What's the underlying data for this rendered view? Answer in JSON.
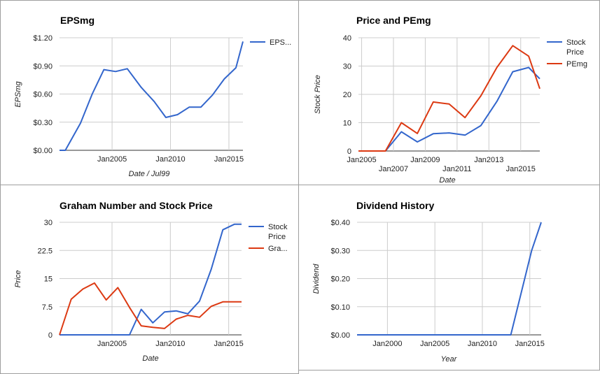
{
  "colors": {
    "blue": "#3366cc",
    "red": "#dc3912",
    "grid": "#cccccc",
    "axis": "#333333",
    "text": "#222222"
  },
  "chart_data": [
    {
      "id": "eps",
      "type": "line",
      "title": "EPSmg",
      "xlabel": "Date / Jul99",
      "ylabel": "EPSmg",
      "ylim": [
        0,
        1.2
      ],
      "yticks": [
        0,
        0.3,
        0.6,
        0.9,
        1.2
      ],
      "ytick_labels": [
        "$0.00",
        "$0.30",
        "$0.60",
        "$0.90",
        "$1.20"
      ],
      "xlim": [
        2000.5,
        2016.2
      ],
      "xticks": [
        2005,
        2010,
        2015
      ],
      "xtick_labels": [
        "Jan2005",
        "Jan2010",
        "Jan2015"
      ],
      "legend": "right",
      "series": [
        {
          "name": "EPS...",
          "color": "#3366cc",
          "x": [
            2000.5,
            2001,
            2002.3,
            2003.3,
            2004.3,
            2005.3,
            2006.3,
            2007.5,
            2008.6,
            2009.6,
            2010.6,
            2011.6,
            2012.6,
            2013.6,
            2014.6,
            2015.6,
            2016.2
          ],
          "y": [
            0,
            0,
            0.29,
            0.6,
            0.86,
            0.84,
            0.87,
            0.67,
            0.52,
            0.35,
            0.38,
            0.46,
            0.46,
            0.59,
            0.76,
            0.88,
            1.16
          ]
        }
      ]
    },
    {
      "id": "pe",
      "type": "line",
      "title": "Price and PEmg",
      "xlabel": "Date",
      "ylabel": "Stock Price",
      "ylim": [
        0,
        40
      ],
      "yticks": [
        0,
        10,
        20,
        30,
        40
      ],
      "ytick_labels": [
        "0",
        "10",
        "20",
        "30",
        "40"
      ],
      "xlim": [
        2004.8,
        2016.2
      ],
      "xticks": [
        2005,
        2007,
        2009,
        2011,
        2013,
        2015
      ],
      "xtick_labels": [
        "Jan2005",
        "Jan2007",
        "Jan2009",
        "Jan2011",
        "Jan2013",
        "Jan2015"
      ],
      "xtick_staggered": true,
      "legend": "right",
      "series": [
        {
          "name": "Stock Price",
          "color": "#3366cc",
          "x": [
            2004.8,
            2005.5,
            2006.5,
            2007.5,
            2008.5,
            2009.5,
            2010.5,
            2011.5,
            2012.5,
            2013.5,
            2014.5,
            2015.5,
            2016.2
          ],
          "y": [
            0,
            0,
            0,
            6.8,
            3.2,
            6.1,
            6.4,
            5.6,
            9,
            17.5,
            28,
            29.5,
            25.5
          ]
        },
        {
          "name": "PEmg",
          "color": "#dc3912",
          "x": [
            2004.8,
            2005.5,
            2006.5,
            2007.5,
            2008.5,
            2009.5,
            2010.5,
            2011.5,
            2012.5,
            2013.5,
            2014.5,
            2015.5,
            2016.2
          ],
          "y": [
            0,
            0,
            0,
            10,
            6.2,
            17.3,
            16.6,
            11.8,
            19.5,
            29.5,
            37.2,
            33.5,
            22
          ]
        }
      ]
    },
    {
      "id": "graham",
      "type": "line",
      "title": "Graham Number and Stock Price",
      "xlabel": "Date",
      "ylabel": "Price",
      "ylim": [
        0,
        30
      ],
      "yticks": [
        0,
        7.5,
        15,
        22.5,
        30
      ],
      "ytick_labels": [
        "0",
        "7.5",
        "15",
        "22.5",
        "30"
      ],
      "xlim": [
        2000.5,
        2016.1
      ],
      "xticks": [
        2005,
        2010,
        2015
      ],
      "xtick_labels": [
        "Jan2005",
        "Jan2010",
        "Jan2015"
      ],
      "legend": "right",
      "series": [
        {
          "name": "Stock Price",
          "color": "#3366cc",
          "x": [
            2000.5,
            2001.5,
            2002.5,
            2003.5,
            2004.5,
            2005.5,
            2006.5,
            2007.5,
            2008.5,
            2009.5,
            2010.5,
            2011.5,
            2012.5,
            2013.5,
            2014.5,
            2015.5,
            2016.1
          ],
          "y": [
            0,
            0,
            0,
            0,
            0,
            0,
            0,
            6.8,
            3.2,
            6.1,
            6.4,
            5.6,
            9,
            17.5,
            28,
            29.5,
            29.5
          ]
        },
        {
          "name": "Gra...",
          "color": "#dc3912",
          "x": [
            2000.5,
            2001.5,
            2002.5,
            2003.5,
            2004.5,
            2005.5,
            2006.5,
            2007.5,
            2008.5,
            2009.5,
            2010.5,
            2011.5,
            2012.5,
            2013.5,
            2014.5,
            2015.5,
            2016.1
          ],
          "y": [
            0,
            9.5,
            12.2,
            13.8,
            9.3,
            12.6,
            7.3,
            2.4,
            2,
            1.7,
            4.2,
            5.2,
            4.7,
            7.6,
            8.8,
            8.8,
            8.8
          ]
        }
      ]
    },
    {
      "id": "dividend",
      "type": "line",
      "title": "Dividend History",
      "xlabel": "Year",
      "ylabel": "Dividend",
      "ylim": [
        0,
        0.4
      ],
      "yticks": [
        0,
        0.1,
        0.2,
        0.3,
        0.4
      ],
      "ytick_labels": [
        "$0.00",
        "$0.10",
        "$0.20",
        "$0.30",
        "$0.40"
      ],
      "xlim": [
        1996.8,
        2016.2
      ],
      "xticks": [
        2000,
        2005,
        2010,
        2015
      ],
      "xtick_labels": [
        "Jan2000",
        "Jan2005",
        "Jan2010",
        "Jan2015"
      ],
      "legend": "none",
      "series": [
        {
          "name": "",
          "color": "#3366cc",
          "x": [
            1996.8,
            2013,
            2015.2,
            2016.2
          ],
          "y": [
            0,
            0,
            0.3,
            0.4
          ]
        }
      ]
    }
  ]
}
